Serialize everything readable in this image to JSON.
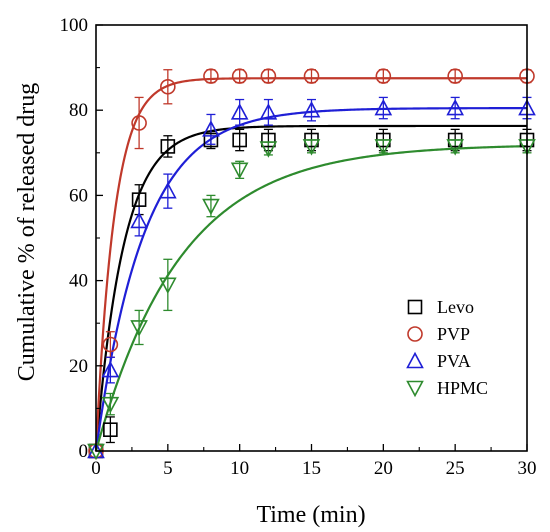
{
  "chart_data": {
    "type": "scatter",
    "xlabel": "Time (min)",
    "ylabel": "Cumulative % of released drug",
    "xlim": [
      0,
      30
    ],
    "ylim": [
      0,
      100
    ],
    "xticks": [
      0,
      5,
      10,
      15,
      20,
      25,
      30
    ],
    "yticks": [
      0,
      20,
      40,
      60,
      80,
      100
    ],
    "grid": false,
    "legend_position": "bottom-right",
    "series": [
      {
        "name": "Levo",
        "marker": "square",
        "color": "#000000",
        "x": [
          0,
          1,
          3,
          5,
          8,
          10,
          12,
          15,
          20,
          25,
          30
        ],
        "y": [
          0,
          5,
          59,
          71.5,
          73,
          73,
          73,
          73,
          73,
          73,
          73
        ],
        "err": [
          0,
          3,
          3.5,
          2.5,
          2,
          2.5,
          2.5,
          2.5,
          2.5,
          2.5,
          2.5
        ],
        "fit": {
          "ymax": 76.3,
          "k": 0.52
        }
      },
      {
        "name": "PVP",
        "marker": "circle",
        "color": "#c0392b",
        "x": [
          0,
          1,
          3,
          5,
          8,
          10,
          12,
          15,
          20,
          25,
          30
        ],
        "y": [
          0,
          25,
          77,
          85.5,
          88,
          88,
          88,
          88,
          88,
          88,
          88
        ],
        "err": [
          0,
          3,
          6,
          4,
          1.5,
          1.5,
          1.5,
          1.5,
          1.5,
          1.5,
          1.5
        ],
        "fit": {
          "ymax": 87.5,
          "k": 0.78
        }
      },
      {
        "name": "PVA",
        "marker": "triangle-up",
        "color": "#1f1fd6",
        "x": [
          0,
          1,
          3,
          5,
          8,
          10,
          12,
          15,
          20,
          25,
          30
        ],
        "y": [
          0,
          19,
          54,
          61,
          75.5,
          79.5,
          79.5,
          80,
          80.5,
          80.5,
          80.5
        ],
        "err": [
          0,
          3,
          3.5,
          4,
          3.5,
          3,
          3,
          2.5,
          2.5,
          2.5,
          2.5
        ],
        "fit": {
          "ymax": 80.5,
          "k": 0.3
        }
      },
      {
        "name": "HPMC",
        "marker": "triangle-down",
        "color": "#2e8b2e",
        "x": [
          0,
          1,
          3,
          5,
          8,
          10,
          12,
          15,
          20,
          25,
          30
        ],
        "y": [
          0,
          11,
          29,
          39,
          57.5,
          66,
          71,
          71.5,
          71.5,
          71.5,
          71.5
        ],
        "err": [
          0,
          2.5,
          4,
          6,
          2.5,
          2,
          1.5,
          1.5,
          1.5,
          1.5,
          1.5
        ],
        "fit": {
          "ymax": 72,
          "k": 0.17
        }
      }
    ]
  }
}
